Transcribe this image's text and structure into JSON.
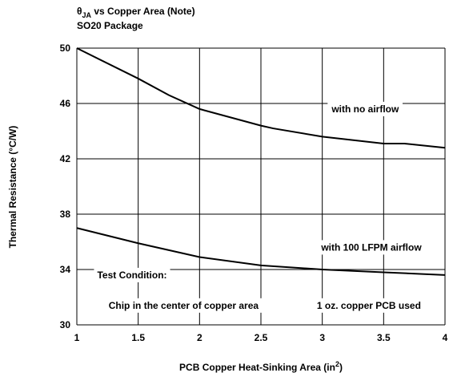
{
  "chart_data": {
    "type": "line",
    "title": [
      "θ",
      "JA",
      " vs Copper Area (Note)"
    ],
    "subtitle": "SO20 Package",
    "x_label": [
      "PCB Copper Heat-Sinking Area (in",
      "2",
      ")"
    ],
    "y_label": "Thermal Resistance (°C/W)",
    "xlim": [
      1,
      4
    ],
    "xticks": [
      1,
      1.5,
      2,
      2.5,
      3,
      3.5,
      4
    ],
    "ylim": [
      30,
      50
    ],
    "yticks": [
      30,
      34,
      38,
      42,
      46,
      50
    ],
    "grid": true,
    "color": "#000000",
    "series": [
      {
        "x": [
          1,
          1.5,
          1.75,
          2,
          2.5,
          2.6,
          3,
          3.5,
          3.67,
          4
        ],
        "values": [
          50,
          47.8,
          46.6,
          45.6,
          44.4,
          44.2,
          43.6,
          43.1,
          43.1,
          42.8
        ]
      },
      {
        "x": [
          1,
          1.5,
          2,
          2.5,
          3,
          3.5,
          4
        ],
        "values": [
          37.0,
          35.9,
          34.9,
          34.3,
          34.0,
          33.8,
          33.6
        ]
      }
    ],
    "annotations": [
      {
        "text": "with no airflow",
        "x": 3.35,
        "y": 45.6
      },
      {
        "text": "with 100 LFPM airflow",
        "x": 3.4,
        "y": 35.6
      },
      {
        "text": "Test Condition:",
        "x": 1.45,
        "y": 33.6
      },
      {
        "text": "Chip in the center of copper area",
        "x": 1.87,
        "y": 31.4
      },
      {
        "text": "1 oz. copper PCB used",
        "x": 3.38,
        "y": 31.4
      }
    ]
  }
}
